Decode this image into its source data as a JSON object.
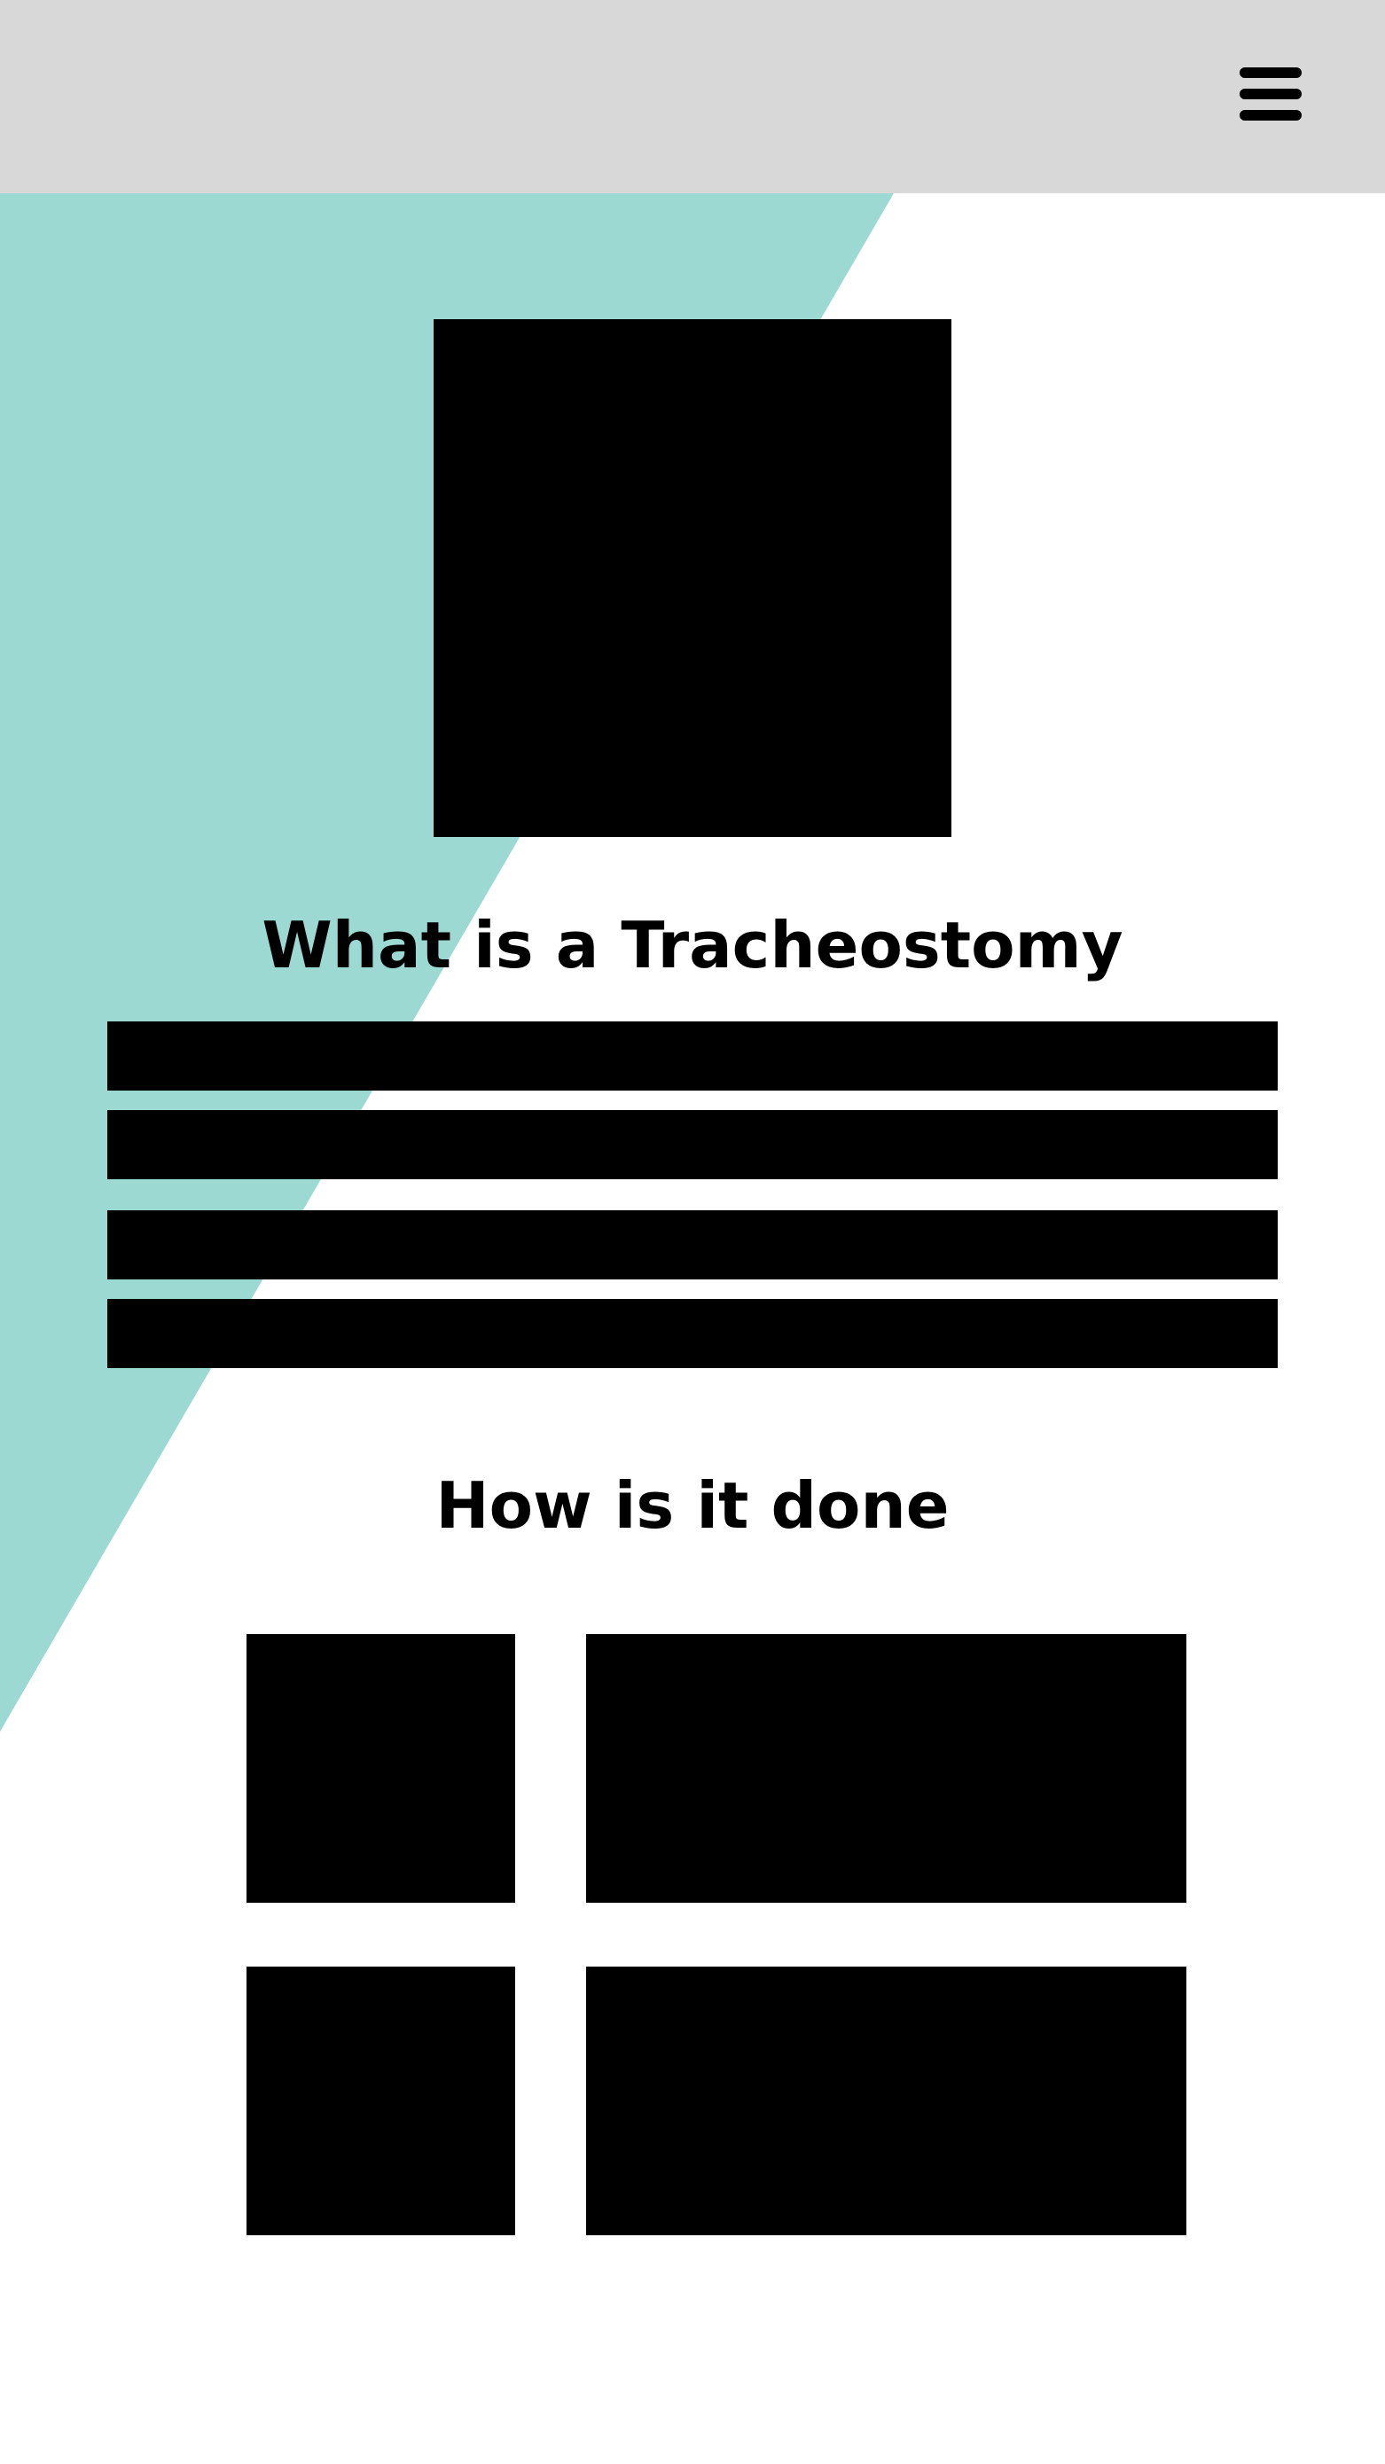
{
  "colors": {
    "header_bg": "#d8d8d8",
    "accent_teal": "#9bd9d2",
    "placeholder": "#000000"
  },
  "header": {
    "menu_icon": "hamburger-menu-icon"
  },
  "intro": {
    "title": "What is a Tracheostomy"
  },
  "procedure": {
    "title": "How is it done"
  }
}
